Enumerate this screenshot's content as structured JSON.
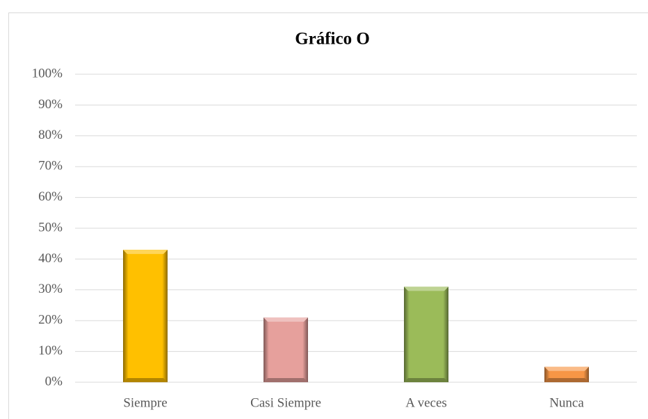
{
  "chart_data": {
    "type": "bar",
    "title": "Gráfico O",
    "categories": [
      "Siempre",
      "Casi Siempre",
      "A veces",
      "Nunca"
    ],
    "values": [
      43,
      21,
      31,
      5
    ],
    "colors": [
      "#ffc000",
      "#e6a09c",
      "#9bbb59",
      "#f79646"
    ],
    "ylim": [
      0,
      100
    ],
    "yticks": [
      {
        "value": 0,
        "label": "0%"
      },
      {
        "value": 10,
        "label": "10%"
      },
      {
        "value": 20,
        "label": "20%"
      },
      {
        "value": 30,
        "label": "30%"
      },
      {
        "value": 40,
        "label": "40%"
      },
      {
        "value": 50,
        "label": "50%"
      },
      {
        "value": 60,
        "label": "60%"
      },
      {
        "value": 70,
        "label": "70%"
      },
      {
        "value": 80,
        "label": "80%"
      },
      {
        "value": 90,
        "label": "90%"
      },
      {
        "value": 100,
        "label": "100%"
      }
    ],
    "grid": true
  }
}
